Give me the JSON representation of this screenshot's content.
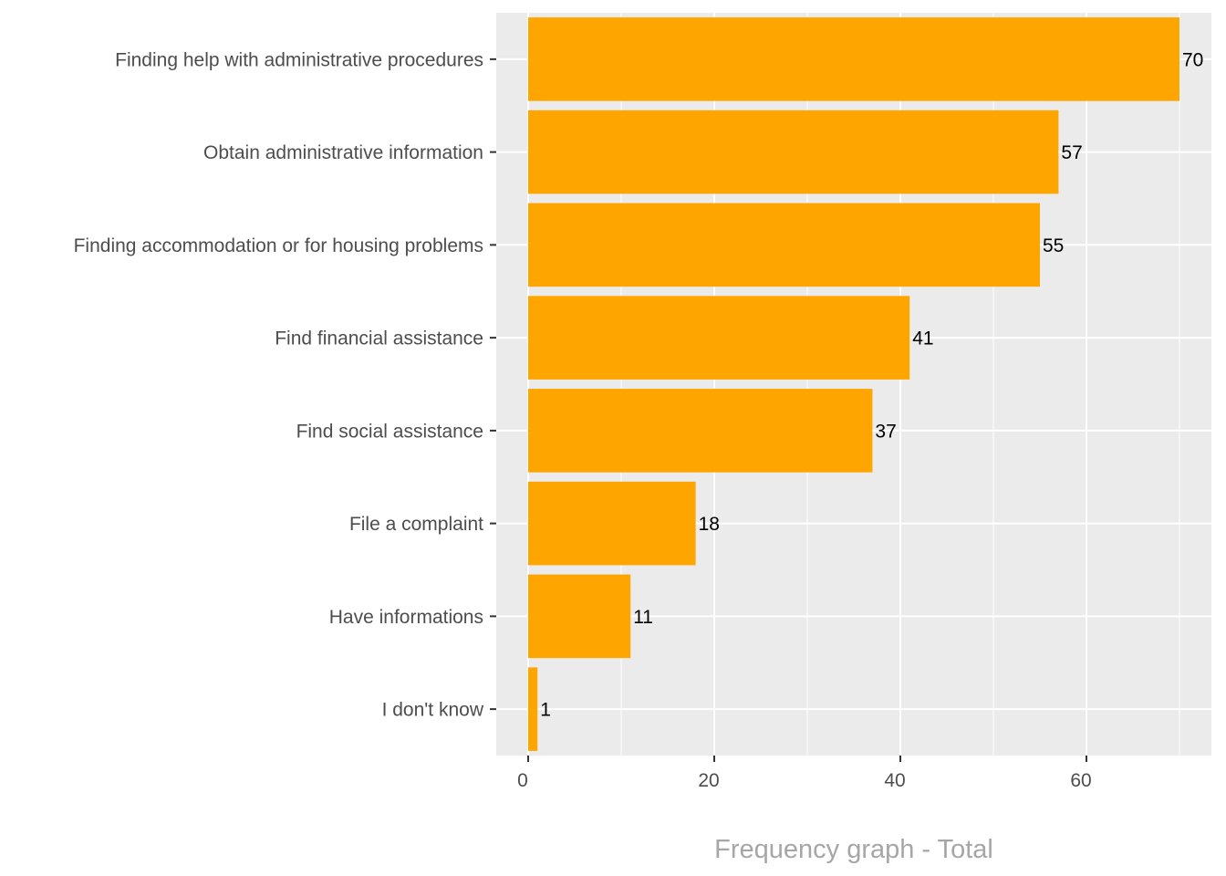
{
  "chart_data": {
    "type": "bar",
    "orientation": "horizontal",
    "title": "",
    "xlabel": "Frequency graph - Total",
    "ylabel": "",
    "categories": [
      "Finding help with administrative procedures",
      "Obtain administrative information",
      "Finding accommodation or for housing problems",
      "Find financial assistance",
      "Find social assistance",
      "File a complaint",
      "Have informations",
      "I don't know"
    ],
    "values": [
      70,
      57,
      55,
      41,
      37,
      18,
      11,
      1
    ],
    "data_labels": [
      "70",
      "57",
      "55",
      "41",
      "37",
      "18",
      "11",
      "1"
    ],
    "x_ticks": [
      0,
      20,
      40,
      60
    ],
    "x_tick_labels": [
      "0",
      "20",
      "40",
      "60"
    ],
    "xlim": [
      -3.5,
      73.5
    ],
    "grid": true,
    "legend": "none",
    "colors": {
      "bar": "#FFA500",
      "panel": "#EBEBEB",
      "grid": "#FFFFFF"
    }
  }
}
